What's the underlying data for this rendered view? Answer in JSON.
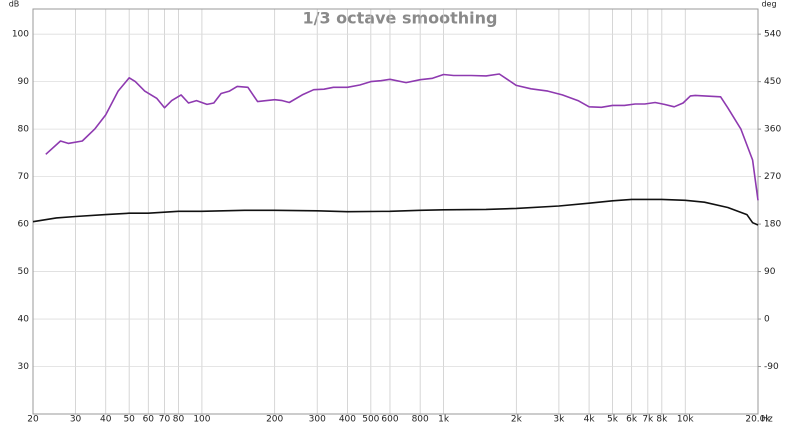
{
  "chart_data": {
    "type": "line",
    "title": "1/3 octave smoothing",
    "y_label": "dB",
    "y2_label": "deg",
    "x_label": "Hz",
    "xscale": "log",
    "grid": true,
    "xlim": [
      20,
      20000
    ],
    "ylim": [
      20,
      105.3
    ],
    "y2lim": [
      -180,
      587.7
    ],
    "xticks": [
      20,
      30,
      40,
      50,
      60,
      70,
      80,
      100,
      200,
      300,
      400,
      500,
      600,
      800,
      {
        "value": 1000,
        "label": "1k"
      },
      {
        "value": 2000,
        "label": "2k"
      },
      {
        "value": 3000,
        "label": "3k"
      },
      {
        "value": 4000,
        "label": "4k"
      },
      {
        "value": 5000,
        "label": "5k"
      },
      {
        "value": 6000,
        "label": "6k"
      },
      {
        "value": 7000,
        "label": "7k"
      },
      {
        "value": 8000,
        "label": "8k"
      },
      {
        "value": 10000,
        "label": "10k"
      },
      {
        "value": 20000,
        "label": "20.0k"
      }
    ],
    "yticks": [
      30,
      40,
      50,
      60,
      70,
      80,
      90,
      100
    ],
    "y2ticks": [
      -90,
      0,
      90,
      180,
      270,
      360,
      450,
      540
    ],
    "series": [
      {
        "color": "#8e3ab0",
        "x": [
          22.6,
          26,
          28,
          32,
          36,
          40,
          45,
          50,
          53,
          58,
          65,
          70,
          75,
          82,
          88,
          95,
          105,
          112,
          120,
          130,
          140,
          155,
          170,
          185,
          200,
          215,
          230,
          260,
          290,
          320,
          350,
          400,
          450,
          500,
          550,
          600,
          700,
          800,
          900,
          1000,
          1100,
          1300,
          1500,
          1700,
          2000,
          2300,
          2700,
          3100,
          3600,
          4000,
          4500,
          5000,
          5600,
          6200,
          6800,
          7500,
          8200,
          9000,
          9800,
          10500,
          11000,
          12000,
          14000,
          15000,
          17000,
          19000,
          20000
        ],
        "values": [
          74.7,
          77.5,
          77,
          77.5,
          80,
          83,
          88,
          90.8,
          90,
          88,
          86.5,
          84.5,
          86,
          87.2,
          85.5,
          86,
          85.2,
          85.5,
          87.5,
          88,
          89,
          88.8,
          85.8,
          86,
          86.2,
          86,
          85.6,
          87.2,
          88.3,
          88.4,
          88.8,
          88.8,
          89.3,
          90,
          90.2,
          90.5,
          89.8,
          90.4,
          90.7,
          91.5,
          91.3,
          91.3,
          91.2,
          91.6,
          89.2,
          88.5,
          88,
          87.2,
          86,
          84.7,
          84.6,
          85,
          85,
          85.3,
          85.3,
          85.6,
          85.2,
          84.7,
          85.5,
          87,
          87.1,
          87,
          86.8,
          84.5,
          80,
          73.5,
          65
        ]
      },
      {
        "color": "#111111",
        "x": [
          20,
          25,
          30,
          40,
          50,
          60,
          80,
          100,
          150,
          200,
          300,
          400,
          600,
          800,
          1000,
          1500,
          2000,
          3000,
          4000,
          5000,
          6000,
          8000,
          10000,
          12000,
          15000,
          18000,
          19000,
          20000
        ],
        "values": [
          60.5,
          61.3,
          61.6,
          62,
          62.3,
          62.3,
          62.7,
          62.7,
          62.9,
          62.9,
          62.8,
          62.6,
          62.7,
          62.9,
          63,
          63.1,
          63.3,
          63.8,
          64.4,
          64.9,
          65.2,
          65.2,
          65,
          64.6,
          63.5,
          62,
          60.3,
          59.8
        ]
      }
    ]
  }
}
